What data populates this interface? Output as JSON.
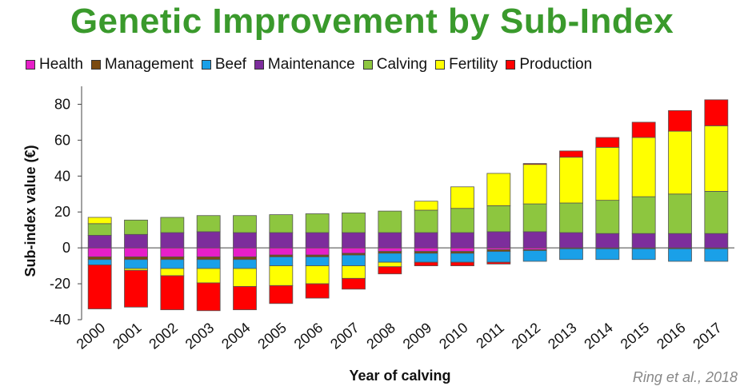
{
  "page": {
    "title": "Genetic Improvement by Sub-Index",
    "citation": "Ring et al., 2018"
  },
  "chart_data": {
    "type": "bar",
    "stacked": true,
    "categories": [
      "2000",
      "2001",
      "2002",
      "2003",
      "2004",
      "2005",
      "2006",
      "2007",
      "2008",
      "2009",
      "2010",
      "2011",
      "2012",
      "2013",
      "2014",
      "2015",
      "2016",
      "2017"
    ],
    "xlabel": "Year of calving",
    "ylabel": "Sub-index value (€)",
    "ylim": [
      -40,
      90
    ],
    "yticks": [
      -40,
      -20,
      0,
      20,
      40,
      60,
      80
    ],
    "legend_position": "top",
    "series": [
      {
        "name": "Health",
        "color": "#e61fc8",
        "values": [
          -5,
          -5,
          -5,
          -5,
          -5,
          -4,
          -4,
          -3,
          -2,
          -2,
          -2,
          -1,
          -1,
          0,
          0,
          0,
          0,
          0
        ]
      },
      {
        "name": "Management",
        "color": "#7a4a10",
        "values": [
          -1.5,
          -1.5,
          -1.5,
          -1.5,
          -1.5,
          -1,
          -1,
          -1,
          -1,
          -1,
          -1,
          -1,
          -0.5,
          -0.5,
          -0.5,
          -0.5,
          -0.5,
          -0.5
        ]
      },
      {
        "name": "Beef",
        "color": "#1aa0e8",
        "values": [
          -3,
          -5,
          -5,
          -5,
          -5,
          -5,
          -5,
          -6,
          -5,
          -5,
          -5,
          -6,
          -6,
          -6,
          -6,
          -6,
          -7,
          -7
        ]
      },
      {
        "name": "Maintenance",
        "color": "#7d2d9c",
        "values": [
          7,
          7.5,
          8.5,
          9,
          8.5,
          8.5,
          8.5,
          8.5,
          8.5,
          8.5,
          8.5,
          9,
          9,
          8.5,
          8,
          8,
          8,
          8
        ]
      },
      {
        "name": "Calving",
        "color": "#8dc63f",
        "values": [
          6.5,
          8,
          8.5,
          9,
          9.5,
          10,
          10.5,
          11,
          12,
          12.5,
          13.5,
          14.5,
          15.5,
          16.5,
          18.5,
          20.5,
          22,
          23.5
        ]
      },
      {
        "name": "Fertility",
        "color": "#ffff00",
        "values": [
          3.5,
          -1,
          -4,
          -8,
          -10,
          -11,
          -10,
          -7,
          -2.5,
          5,
          12,
          18,
          22,
          25.5,
          29.5,
          33,
          35,
          36.5
        ]
      },
      {
        "name": "Production",
        "color": "#ff0000",
        "values": [
          -24.5,
          -20.5,
          -19,
          -15.5,
          -13,
          -10,
          -8,
          -6,
          -4,
          -2,
          -2,
          -1,
          0.5,
          3.5,
          5.5,
          8.5,
          11.5,
          14.5
        ]
      }
    ]
  }
}
